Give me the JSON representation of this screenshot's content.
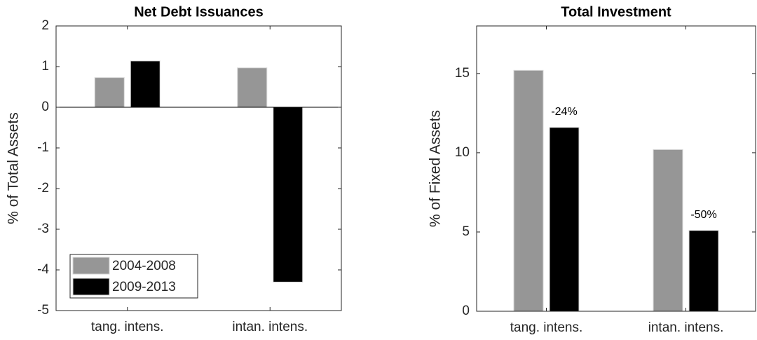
{
  "chart_data": [
    {
      "type": "bar",
      "title": "Net Debt Issuances",
      "y_label": "% of Total Assets",
      "categories": [
        "tang. intens.",
        "intan. intens."
      ],
      "series": [
        {
          "name": "2004-2008",
          "color": "#969696",
          "values": [
            0.73,
            0.97
          ]
        },
        {
          "name": "2009-2013",
          "color": "#000000",
          "values": [
            1.14,
            -4.3
          ]
        }
      ],
      "ylim": [
        -5,
        2
      ],
      "yticks": [
        -5,
        -4,
        -3,
        -2,
        -1,
        0,
        1,
        2
      ],
      "legend": "lower left"
    },
    {
      "type": "bar",
      "title": "Total Investment",
      "y_label": "% of Fixed Assets",
      "categories": [
        "tang. intens.",
        "intan. intens."
      ],
      "series": [
        {
          "color": "#969696",
          "values": [
            15.2,
            10.2
          ]
        },
        {
          "color": "#000000",
          "values": [
            11.6,
            5.1
          ]
        }
      ],
      "annotations": [
        "-24%",
        "-50%"
      ],
      "ylim": [
        0,
        18
      ],
      "yticks": [
        0,
        5,
        10,
        15
      ]
    }
  ]
}
